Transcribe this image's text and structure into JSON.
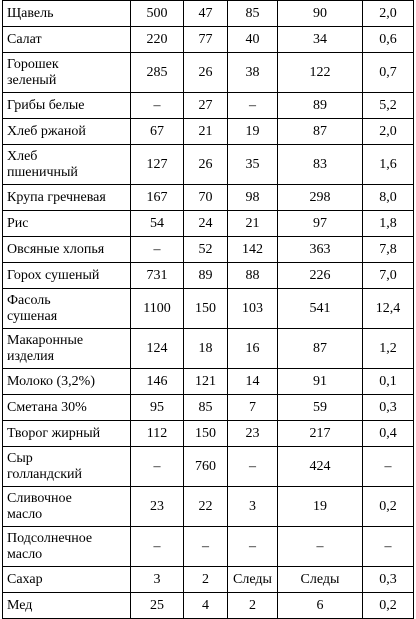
{
  "table": {
    "rows": [
      [
        "Щавель",
        "500",
        "47",
        "85",
        "90",
        "2,0"
      ],
      [
        "Салат",
        "220",
        "77",
        "40",
        "34",
        "0,6"
      ],
      [
        "Горошек\nзеленый",
        "285",
        "26",
        "38",
        "122",
        "0,7"
      ],
      [
        "Грибы белые",
        "–",
        "27",
        "–",
        "89",
        "5,2"
      ],
      [
        "Хлеб ржаной",
        "67",
        "21",
        "19",
        "87",
        "2,0"
      ],
      [
        "Хлеб\nпшеничный",
        "127",
        "26",
        "35",
        "83",
        "1,6"
      ],
      [
        "Крупа гречневая",
        "167",
        "70",
        "98",
        "298",
        "8,0"
      ],
      [
        "Рис",
        "54",
        "24",
        "21",
        "97",
        "1,8"
      ],
      [
        "Овсяные хлопья",
        "–",
        "52",
        "142",
        "363",
        "7,8"
      ],
      [
        "Горох сушеный",
        "731",
        "89",
        "88",
        "226",
        "7,0"
      ],
      [
        "Фасоль\nсушеная",
        "1100",
        "150",
        "103",
        "541",
        "12,4"
      ],
      [
        "Макаронные\nизделия",
        "124",
        "18",
        "16",
        "87",
        "1,2"
      ],
      [
        "Молоко (3,2%)",
        "146",
        "121",
        "14",
        "91",
        "0,1"
      ],
      [
        "Сметана 30%",
        "95",
        "85",
        "7",
        "59",
        "0,3"
      ],
      [
        "Творог жирный",
        "112",
        "150",
        "23",
        "217",
        "0,4"
      ],
      [
        "Сыр\nголландский",
        "–",
        "760",
        "–",
        "424",
        "–"
      ],
      [
        "Сливочное\nмасло",
        "23",
        "22",
        "3",
        "19",
        "0,2"
      ],
      [
        "Подсолнечное\nмасло",
        "–",
        "–",
        "–",
        "–",
        "–"
      ],
      [
        "Сахар",
        "3",
        "2",
        "Следы",
        "Следы",
        "0,3"
      ],
      [
        "Мед",
        "25",
        "4",
        "2",
        "6",
        "0,2"
      ]
    ]
  }
}
